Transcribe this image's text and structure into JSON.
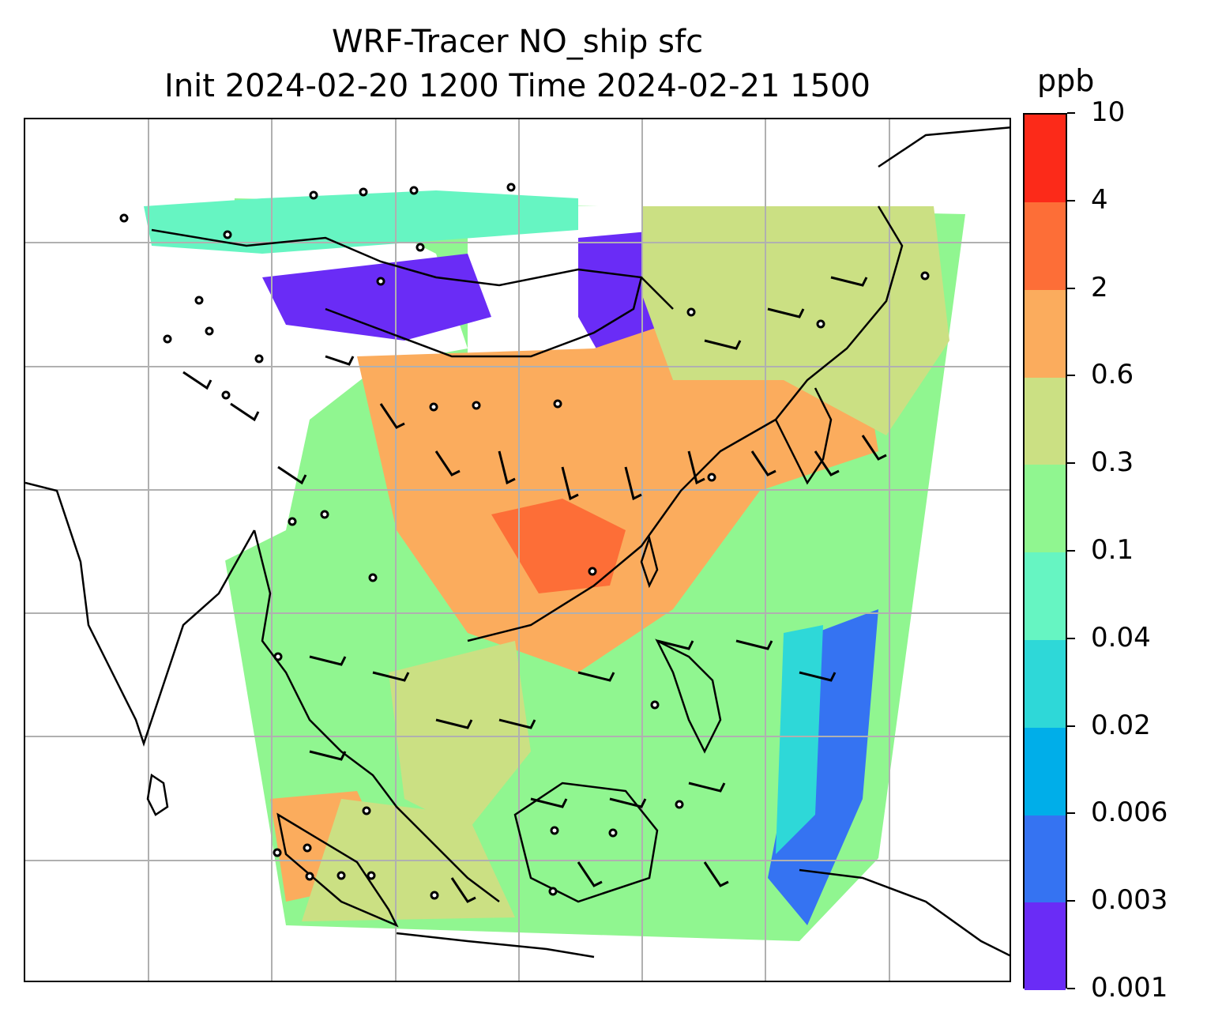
{
  "title": {
    "line1": "WRF-Tracer NO_ship sfc",
    "line2": "Init 2024-02-20 1200 Time 2024-02-21 1500"
  },
  "colorbar": {
    "unit": "ppb",
    "levels": [
      "0.001",
      "0.003",
      "0.006",
      "0.02",
      "0.04",
      "0.1",
      "0.3",
      "0.6",
      "2",
      "4",
      "10"
    ],
    "colors": [
      "#6a2cf6",
      "#3573f2",
      "#00aee9",
      "#2ed8d8",
      "#66f5c2",
      "#90f690",
      "#cbe083",
      "#fbac5d",
      "#fd6e37",
      "#fc2a19"
    ]
  },
  "map": {
    "variable": "NO_ship",
    "level": "sfc",
    "gridlines": true,
    "region": "East Asia / Southeast Asia",
    "wind_barbs": true
  }
}
